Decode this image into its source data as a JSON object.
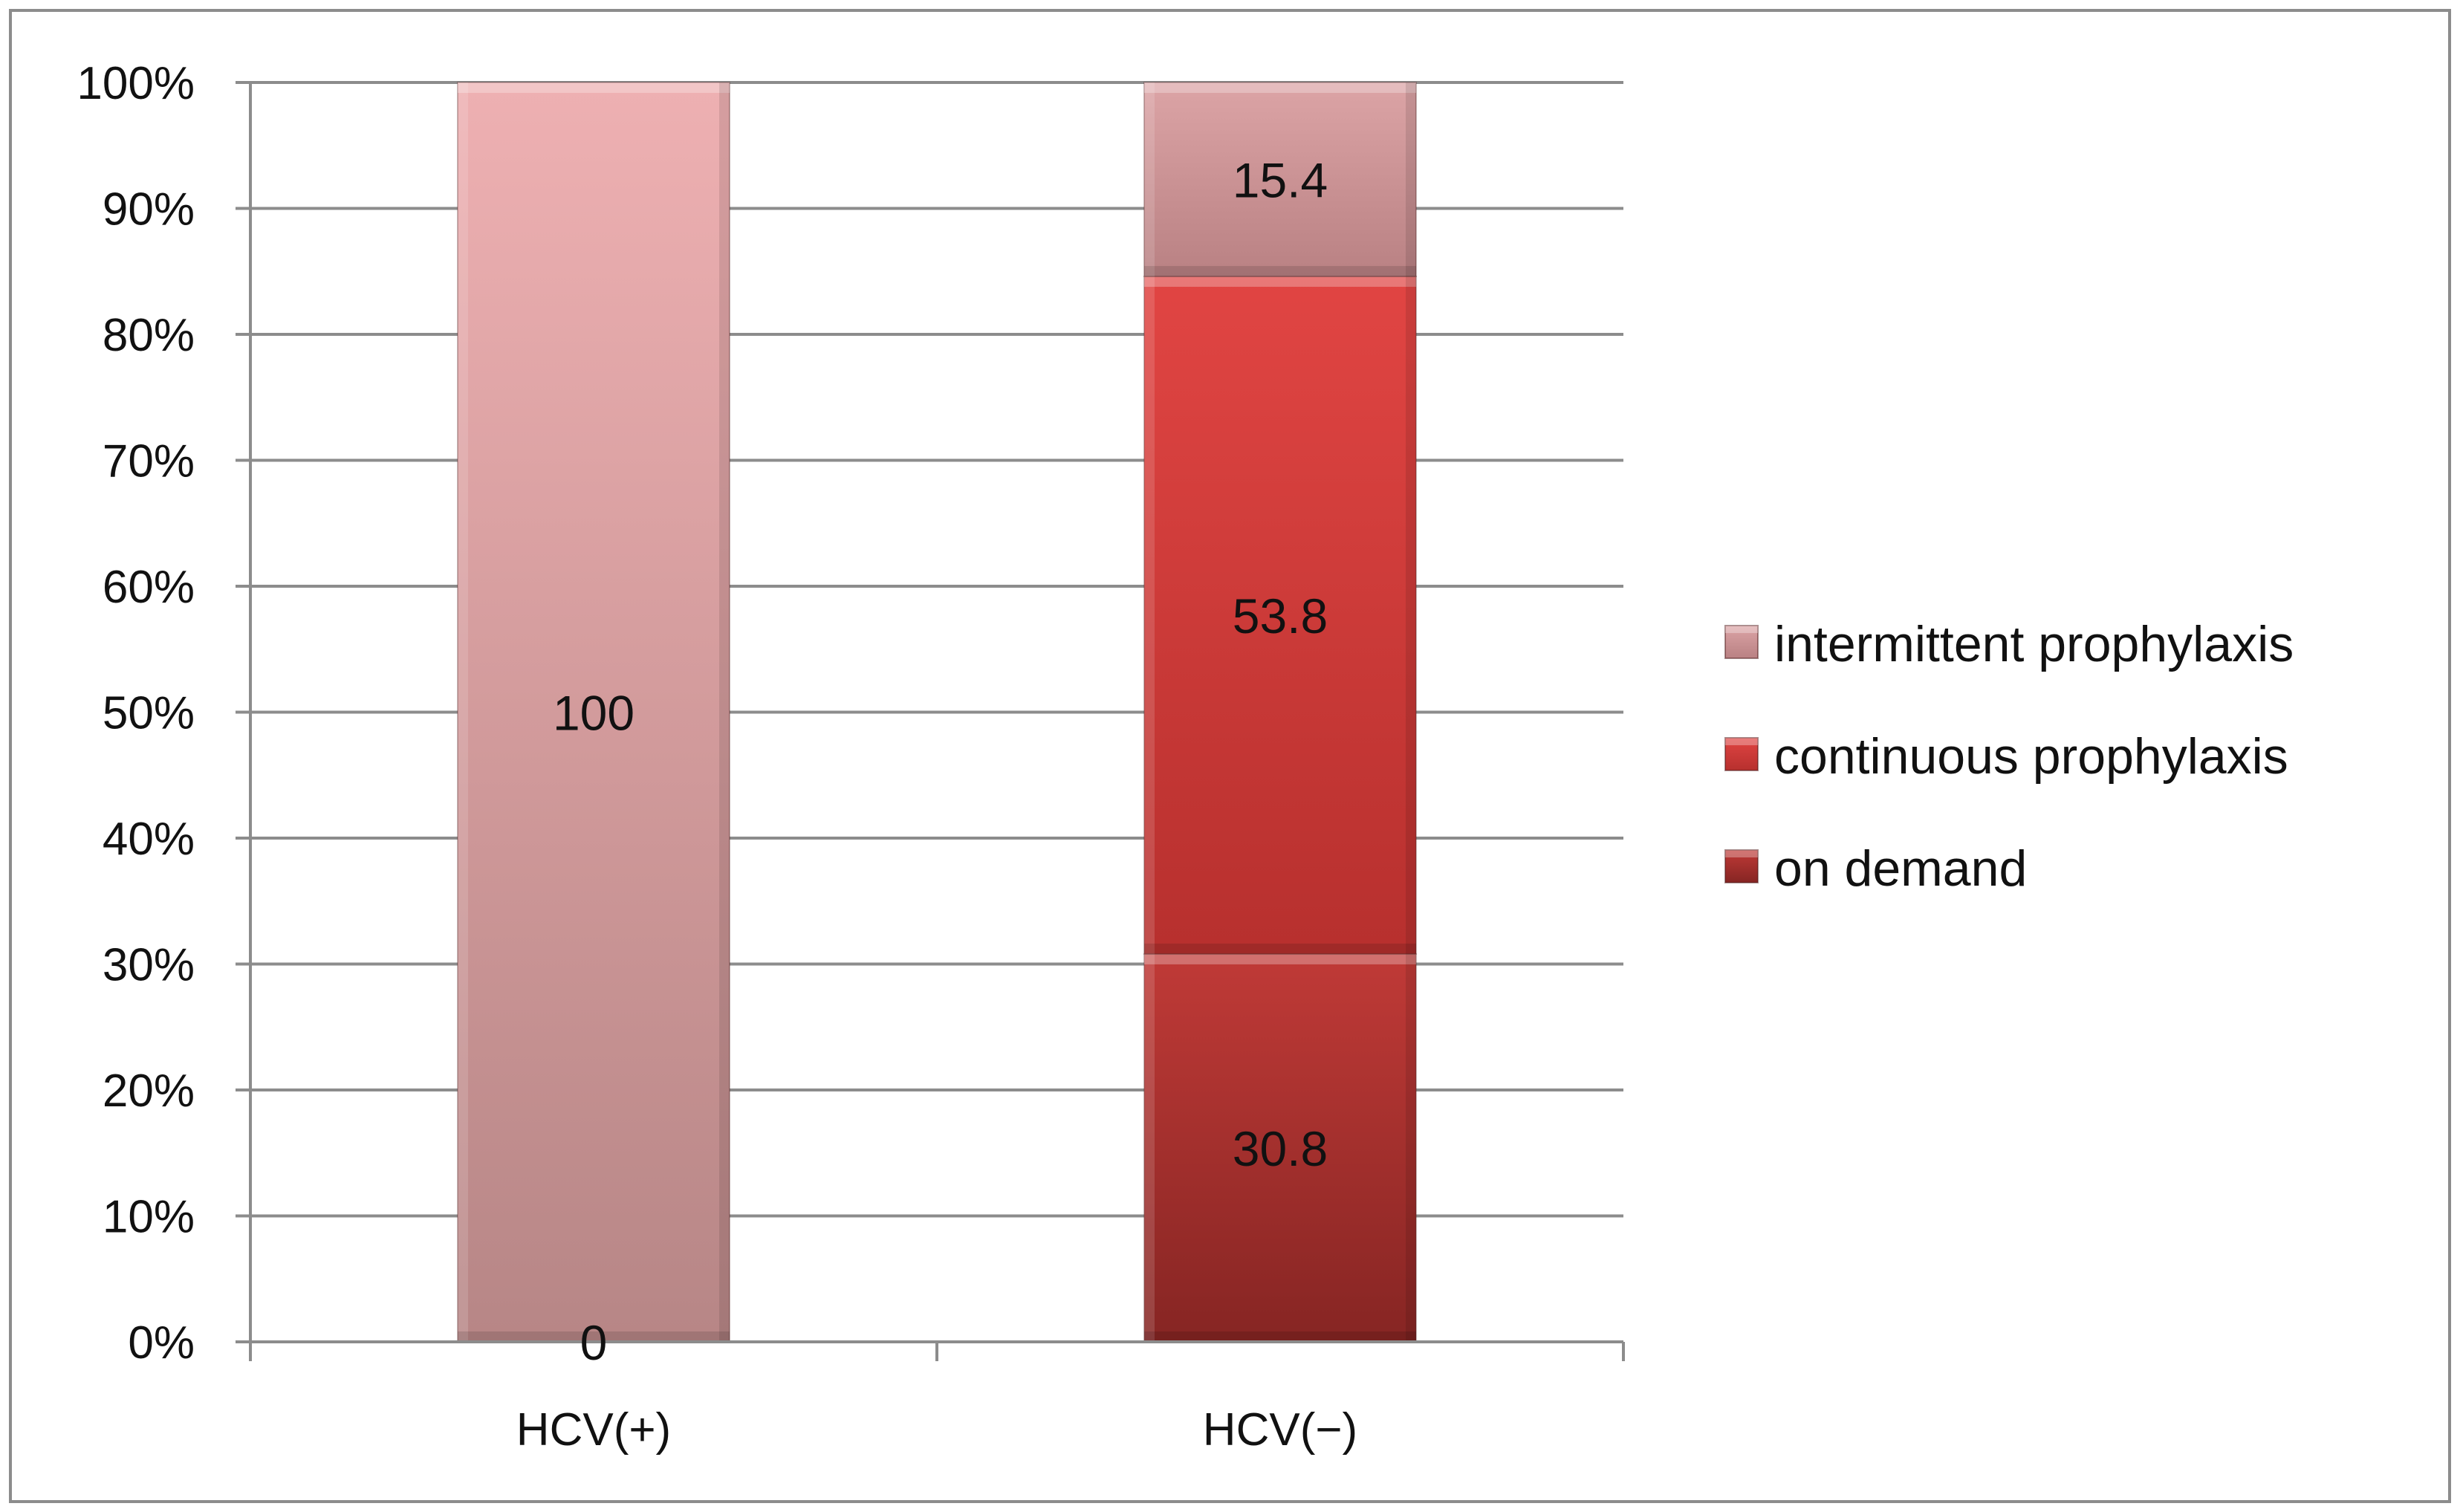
{
  "chart_data": {
    "type": "bar",
    "stacked": true,
    "percent_stacked": true,
    "categories": [
      "HCV(+)",
      "HCV(−)"
    ],
    "series": [
      {
        "name": "on demand",
        "values": [
          0,
          30.8
        ],
        "labels": [
          "0",
          "30.8"
        ],
        "color": "#a8302e"
      },
      {
        "name": "continuous prophylaxis",
        "values": [
          100,
          53.8
        ],
        "labels": [
          "100",
          "53.8"
        ],
        "colors": [
          "#d7a0a3",
          "#c93a38"
        ]
      },
      {
        "name": "intermittent prophylaxis",
        "values": [
          0,
          15.4
        ],
        "labels": [
          "",
          "15.4"
        ],
        "color": "#c99497"
      }
    ],
    "y_ticks": [
      "0%",
      "10%",
      "20%",
      "30%",
      "40%",
      "50%",
      "60%",
      "70%",
      "80%",
      "90%",
      "100%"
    ],
    "ylim": [
      0,
      100
    ],
    "grid": true,
    "legend_position": "right",
    "legend_order": [
      "intermittent prophylaxis",
      "continuous prophylaxis",
      "on demand"
    ],
    "title": "",
    "xlabel": "",
    "ylabel": ""
  }
}
